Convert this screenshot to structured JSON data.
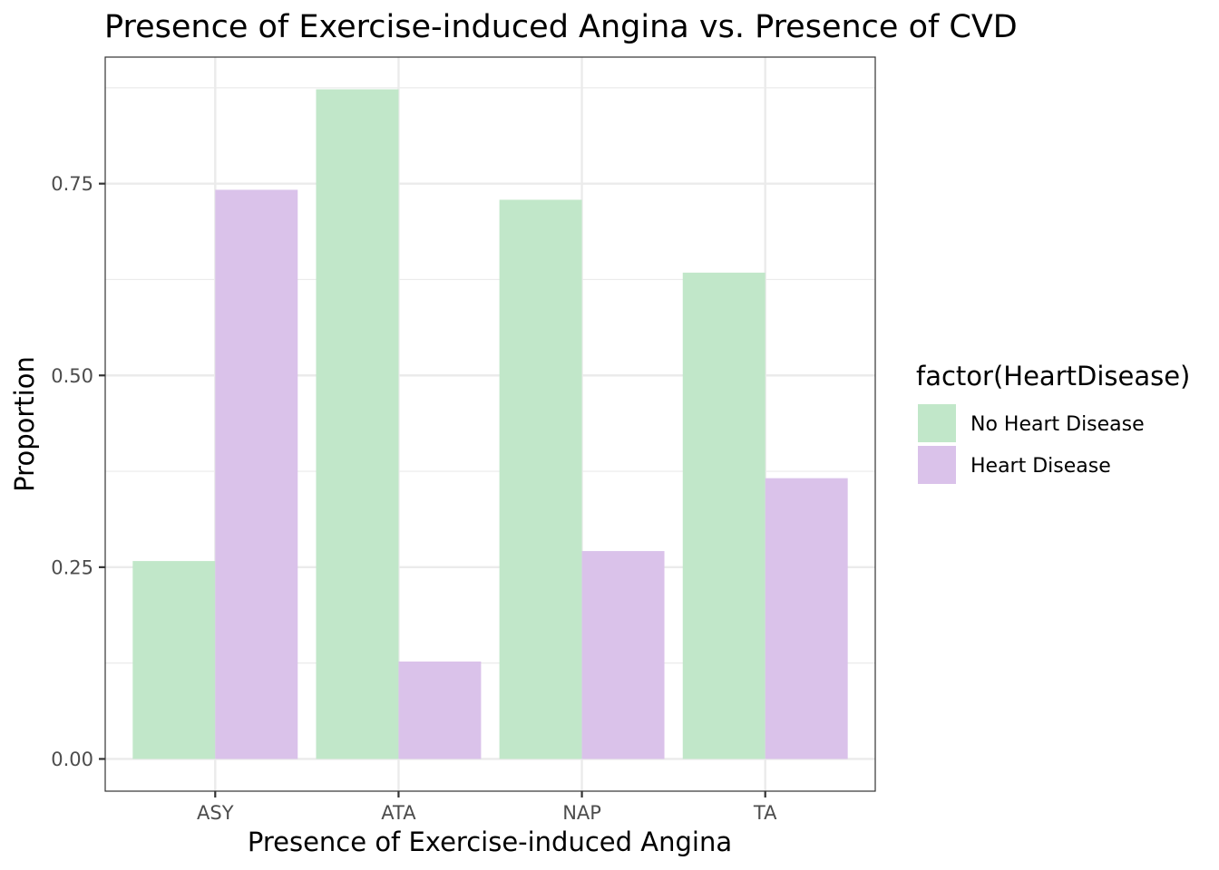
{
  "chart_data": {
    "type": "bar",
    "title": "Presence of Exercise-induced Angina vs. Presence of CVD",
    "xlabel": "Presence of Exercise-induced Angina",
    "ylabel": "Proportion",
    "categories": [
      "ASY",
      "ATA",
      "NAP",
      "TA"
    ],
    "series": [
      {
        "name": "No Heart Disease",
        "color": "#c1e7c9",
        "values": [
          0.258,
          0.873,
          0.729,
          0.634
        ]
      },
      {
        "name": "Heart Disease",
        "color": "#dac2ea",
        "values": [
          0.742,
          0.127,
          0.271,
          0.366
        ]
      }
    ],
    "ylim": [
      -0.042,
      0.915
    ],
    "yticks": [
      0.0,
      0.25,
      0.5,
      0.75
    ],
    "ytick_labels": [
      "0.00",
      "0.25",
      "0.50",
      "0.75"
    ],
    "legend_title": "factor(HeartDisease)",
    "legend_position": "right",
    "grid": true
  }
}
